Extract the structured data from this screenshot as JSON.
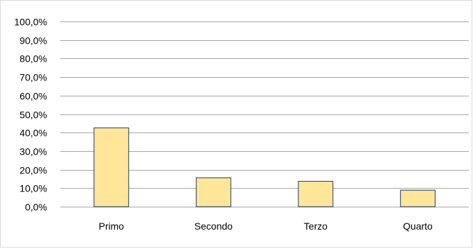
{
  "chart_data": {
    "type": "bar",
    "categories": [
      "Primo",
      "Secondo",
      "Terzo",
      "Quarto"
    ],
    "values": [
      42.6,
      15.6,
      13.7,
      8.9
    ],
    "ylim": [
      0,
      100
    ],
    "yticks": [
      "0,0%",
      "10,0%",
      "20,0%",
      "30,0%",
      "40,0%",
      "50,0%",
      "60,0%",
      "70,0%",
      "80,0%",
      "90,0%",
      "100,0%"
    ],
    "grid": true,
    "legend": "none",
    "colors": {
      "bar_fill": "#FFE699",
      "bar_stroke": "#1F3864",
      "grid": "#A6A6A6"
    }
  }
}
